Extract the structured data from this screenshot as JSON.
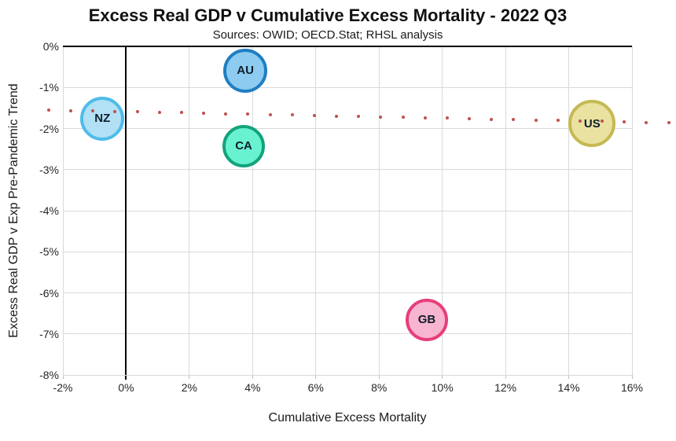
{
  "title": "Excess Real GDP v Cumulative Excess Mortality - 2022 Q3",
  "subtitle": "Sources: OWID; OECD.Stat; RHSL analysis",
  "chart_data": {
    "type": "scatter",
    "title": "Excess Real GDP v Cumulative Excess Mortality - 2022 Q3",
    "subtitle": "Sources: OWID; OECD.Stat; RHSL analysis",
    "xlabel": "Cumulative Excess Mortality",
    "ylabel": "Excess Real GDP v Exp Pre-Pandemic Trend",
    "xlim": [
      -2,
      16
    ],
    "ylim": [
      -8,
      0
    ],
    "grid": true,
    "x_ticks": [
      -2,
      0,
      2,
      4,
      6,
      8,
      10,
      12,
      14,
      16
    ],
    "x_tick_labels": [
      "-2%",
      "0%",
      "2%",
      "4%",
      "6%",
      "8%",
      "10%",
      "12%",
      "14%",
      "16%"
    ],
    "y_ticks": [
      0,
      -1,
      -2,
      -3,
      -4,
      -5,
      -6,
      -7,
      -8
    ],
    "y_tick_labels": [
      "0%",
      "-1%",
      "-2%",
      "-3%",
      "-4%",
      "-5%",
      "-6%",
      "-7%",
      "-8%"
    ],
    "points": [
      {
        "label": "NZ",
        "x": -0.75,
        "y": -1.76,
        "radius": 28,
        "fill": "#b2e0f5",
        "stroke": "#4dbcea"
      },
      {
        "label": "AU",
        "x": 3.77,
        "y": -0.59,
        "radius": 28,
        "fill": "#8dccf0",
        "stroke": "#1f7ec2"
      },
      {
        "label": "CA",
        "x": 3.72,
        "y": -2.43,
        "radius": 27,
        "fill": "#69f2d0",
        "stroke": "#12a37c"
      },
      {
        "label": "GB",
        "x": 9.51,
        "y": -6.66,
        "radius": 27,
        "fill": "#f8b5cf",
        "stroke": "#e63e7c"
      },
      {
        "label": "US",
        "x": 14.74,
        "y": -1.88,
        "radius": 30,
        "fill": "#e9e2a1",
        "stroke": "#c5b952"
      }
    ],
    "trendline": {
      "style": "dotted",
      "color": "#c0504d",
      "x1": -2.45,
      "y1": -1.55,
      "x2": 17.16,
      "y2": -1.86,
      "dot_count": 29,
      "dot_size": 4
    },
    "colors": {
      "gridline": "#d9d9d9",
      "axis": "#000000",
      "tick_text": "#262626",
      "background": "#ffffff"
    }
  }
}
